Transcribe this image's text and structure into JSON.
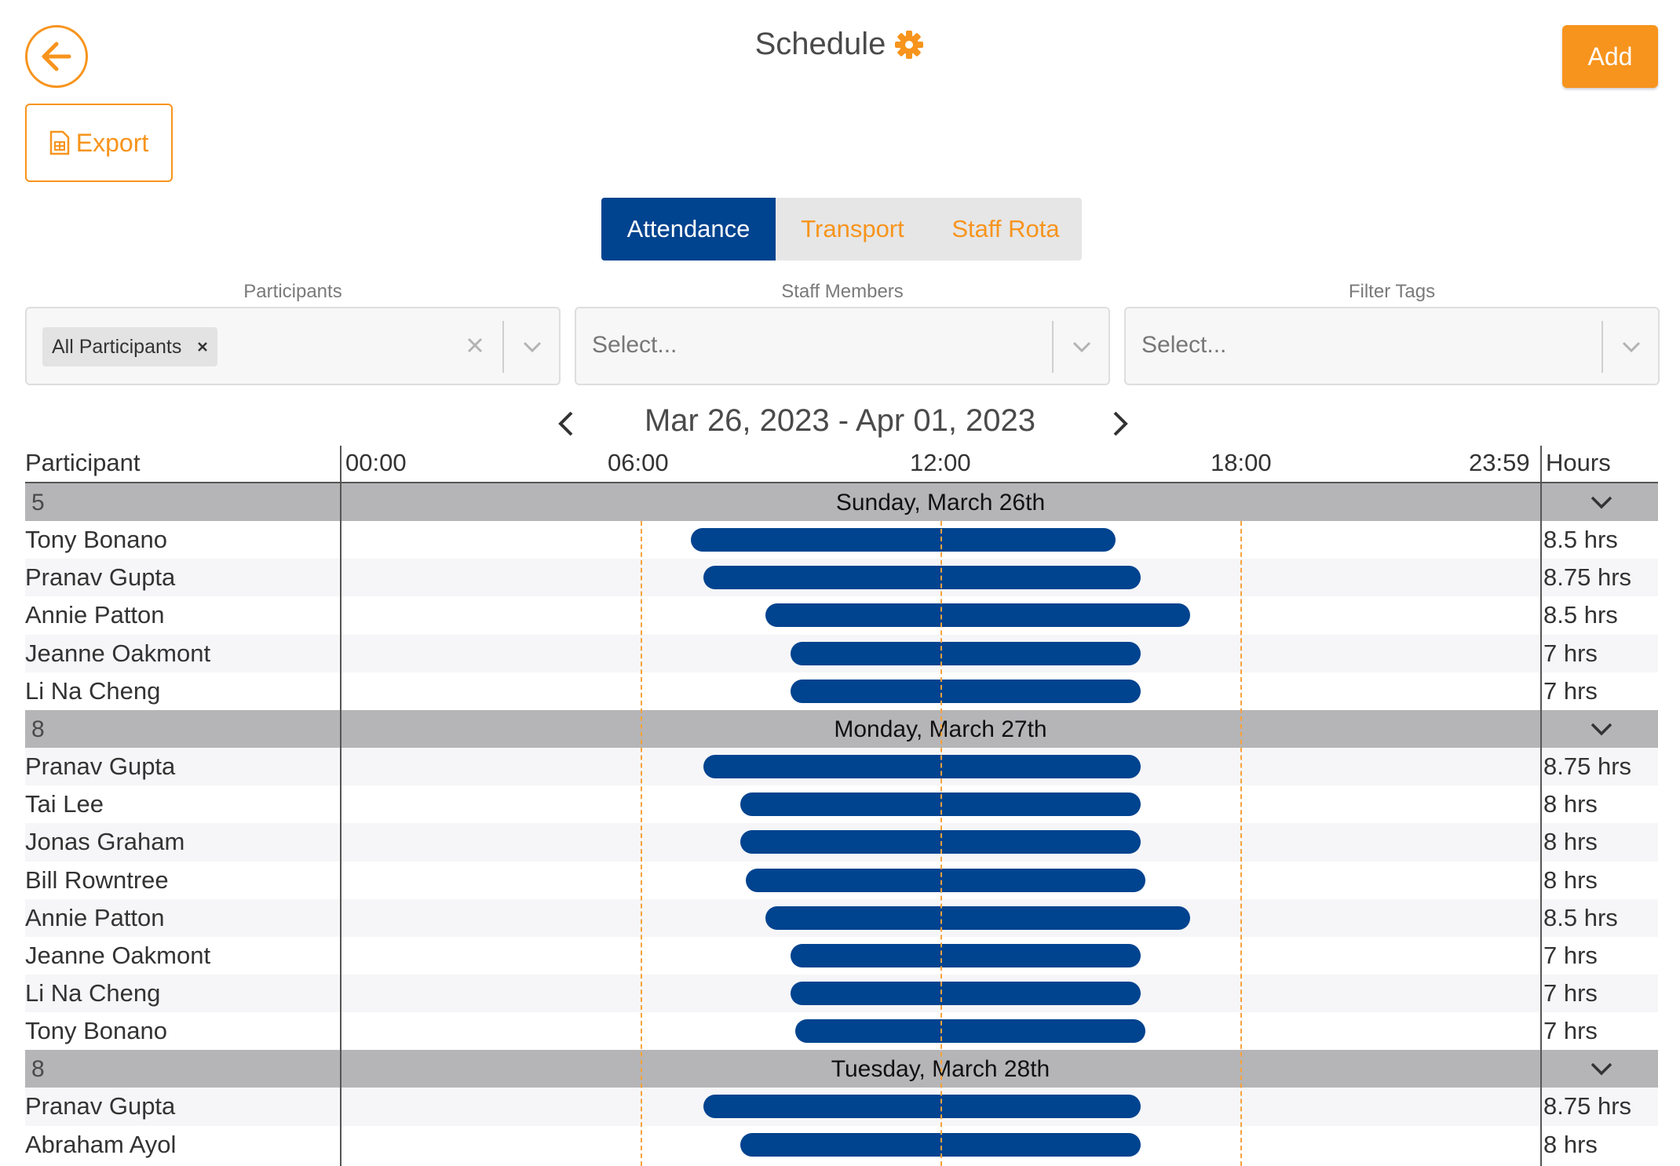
{
  "header": {
    "title": "Schedule",
    "add_label": "Add",
    "export_label": "Export"
  },
  "tabs": [
    {
      "label": "Attendance",
      "active": true
    },
    {
      "label": "Transport",
      "active": false
    },
    {
      "label": "Staff Rota",
      "active": false
    }
  ],
  "filters": {
    "participants": {
      "label": "Participants",
      "chip": "All Participants"
    },
    "staff": {
      "label": "Staff Members",
      "placeholder": "Select..."
    },
    "tags": {
      "label": "Filter Tags",
      "placeholder": "Select..."
    }
  },
  "date_range": "Mar 26, 2023 - Apr 01, 2023",
  "table": {
    "col_participant": "Participant",
    "col_hours": "Hours",
    "time_ticks": [
      "00:00",
      "06:00",
      "12:00",
      "18:00",
      "23:59"
    ]
  },
  "days": [
    {
      "title": "Sunday, March 26th",
      "count": "5",
      "rows": [
        {
          "name": "Tony Bonano",
          "start": 7.0,
          "end": 15.5,
          "hours": "8.5 hrs"
        },
        {
          "name": "Pranav Gupta",
          "start": 7.25,
          "end": 16.0,
          "hours": "8.75 hrs"
        },
        {
          "name": "Annie Patton",
          "start": 8.5,
          "end": 17.0,
          "hours": "8.5 hrs"
        },
        {
          "name": "Jeanne Oakmont",
          "start": 9.0,
          "end": 16.0,
          "hours": "7 hrs"
        },
        {
          "name": "Li Na Cheng",
          "start": 9.0,
          "end": 16.0,
          "hours": "7 hrs"
        }
      ]
    },
    {
      "title": "Monday, March 27th",
      "count": "8",
      "rows": [
        {
          "name": "Pranav Gupta",
          "start": 7.25,
          "end": 16.0,
          "hours": "8.75 hrs"
        },
        {
          "name": "Tai Lee",
          "start": 8.0,
          "end": 16.0,
          "hours": "8 hrs"
        },
        {
          "name": "Jonas Graham",
          "start": 8.0,
          "end": 16.0,
          "hours": "8 hrs"
        },
        {
          "name": "Bill Rowntree",
          "start": 8.1,
          "end": 16.1,
          "hours": "8 hrs"
        },
        {
          "name": "Annie Patton",
          "start": 8.5,
          "end": 17.0,
          "hours": "8.5 hrs"
        },
        {
          "name": "Jeanne Oakmont",
          "start": 9.0,
          "end": 16.0,
          "hours": "7 hrs"
        },
        {
          "name": "Li Na Cheng",
          "start": 9.0,
          "end": 16.0,
          "hours": "7 hrs"
        },
        {
          "name": "Tony Bonano",
          "start": 9.1,
          "end": 16.1,
          "hours": "7 hrs"
        }
      ]
    },
    {
      "title": "Tuesday, March 28th",
      "count": "8",
      "rows": [
        {
          "name": "Pranav Gupta",
          "start": 7.25,
          "end": 16.0,
          "hours": "8.75 hrs"
        },
        {
          "name": "Abraham Ayol",
          "start": 8.0,
          "end": 16.0,
          "hours": "8 hrs"
        }
      ]
    }
  ],
  "colors": {
    "accent": "#f7941d",
    "primary": "#00438f",
    "day_header": "#b5b5b8"
  }
}
